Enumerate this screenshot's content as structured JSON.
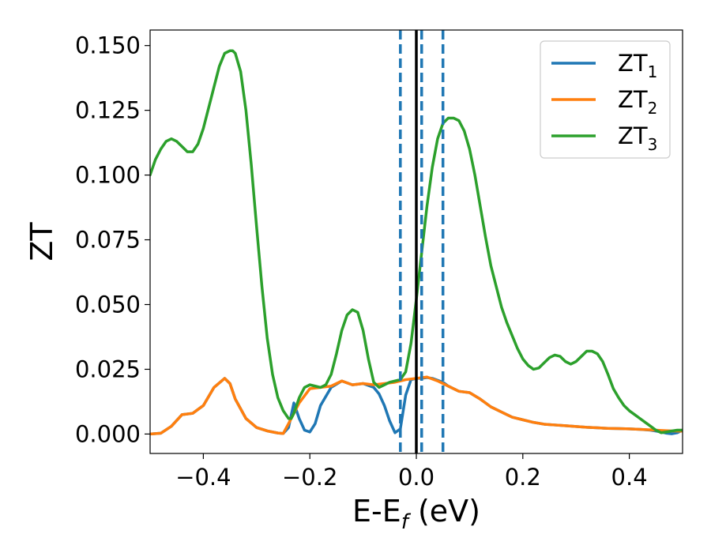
{
  "chart_data": {
    "type": "line",
    "xlabel": "E-E",
    "xlabel_subscript": "f",
    "xlabel_unit": "(eV)",
    "ylabel": "ZT",
    "xlim": [
      -0.5,
      0.5
    ],
    "ylim": [
      -0.0075,
      0.156
    ],
    "xticks": [
      -0.4,
      -0.2,
      0.0,
      0.2,
      0.4
    ],
    "xtick_labels": [
      "−0.4",
      "−0.2",
      "0.0",
      "0.2",
      "0.4"
    ],
    "yticks": [
      0.0,
      0.025,
      0.05,
      0.075,
      0.1,
      0.125,
      0.15
    ],
    "ytick_labels": [
      "0.000",
      "0.025",
      "0.050",
      "0.075",
      "0.100",
      "0.125",
      "0.150"
    ],
    "grid": false,
    "legend_position": "top-right",
    "vertical_lines": [
      {
        "x": 0.0,
        "style": "solid",
        "color": "#000000"
      },
      {
        "x": -0.03,
        "style": "dashed",
        "color": "#1f77b4"
      },
      {
        "x": 0.01,
        "style": "dashed",
        "color": "#1f77b4"
      },
      {
        "x": 0.05,
        "style": "dashed",
        "color": "#1f77b4"
      }
    ],
    "series": [
      {
        "name": "ZT",
        "subscript": "1",
        "color": "#1f77b4",
        "x": [
          -0.5,
          -0.48,
          -0.46,
          -0.44,
          -0.42,
          -0.4,
          -0.38,
          -0.36,
          -0.35,
          -0.34,
          -0.32,
          -0.3,
          -0.28,
          -0.26,
          -0.25,
          -0.24,
          -0.23,
          -0.22,
          -0.21,
          -0.2,
          -0.19,
          -0.18,
          -0.16,
          -0.14,
          -0.12,
          -0.1,
          -0.08,
          -0.07,
          -0.06,
          -0.05,
          -0.04,
          -0.03,
          -0.02,
          -0.01,
          0.0,
          0.01,
          0.02,
          0.03,
          0.05,
          0.06,
          0.08,
          0.1,
          0.12,
          0.14,
          0.16,
          0.18,
          0.2,
          0.22,
          0.24,
          0.26,
          0.28,
          0.3,
          0.32,
          0.34,
          0.36,
          0.38,
          0.4,
          0.42,
          0.44,
          0.46,
          0.47,
          0.48,
          0.49,
          0.5
        ],
        "y": [
          0.0,
          0.0003,
          0.003,
          0.0075,
          0.008,
          0.011,
          0.018,
          0.0215,
          0.0195,
          0.0135,
          0.006,
          0.0025,
          0.0012,
          0.0004,
          0.0002,
          0.0025,
          0.012,
          0.006,
          0.0015,
          0.0008,
          0.004,
          0.011,
          0.018,
          0.0205,
          0.019,
          0.0195,
          0.018,
          0.0155,
          0.011,
          0.005,
          0.0005,
          0.002,
          0.015,
          0.021,
          0.0215,
          0.0215,
          0.0218,
          0.0215,
          0.02,
          0.0185,
          0.0165,
          0.016,
          0.0135,
          0.0105,
          0.0085,
          0.0065,
          0.0055,
          0.0045,
          0.0038,
          0.0035,
          0.0032,
          0.0029,
          0.0026,
          0.0024,
          0.0022,
          0.0021,
          0.002,
          0.0018,
          0.0015,
          0.0008,
          0.0003,
          0.0001,
          0.0005,
          0.0015
        ]
      },
      {
        "name": "ZT",
        "subscript": "2",
        "color": "#ff7f0e",
        "x": [
          -0.5,
          -0.48,
          -0.46,
          -0.44,
          -0.42,
          -0.4,
          -0.38,
          -0.36,
          -0.35,
          -0.34,
          -0.32,
          -0.3,
          -0.28,
          -0.26,
          -0.25,
          -0.24,
          -0.22,
          -0.2,
          -0.18,
          -0.16,
          -0.14,
          -0.12,
          -0.1,
          -0.08,
          -0.06,
          -0.04,
          -0.02,
          0.0,
          0.02,
          0.04,
          0.06,
          0.08,
          0.1,
          0.12,
          0.14,
          0.16,
          0.18,
          0.2,
          0.22,
          0.24,
          0.26,
          0.28,
          0.3,
          0.32,
          0.34,
          0.36,
          0.38,
          0.4,
          0.42,
          0.44,
          0.46,
          0.48,
          0.5
        ],
        "y": [
          0.0,
          0.0003,
          0.003,
          0.0075,
          0.008,
          0.011,
          0.018,
          0.0215,
          0.0195,
          0.0135,
          0.006,
          0.0025,
          0.0012,
          0.0004,
          0.0002,
          0.004,
          0.012,
          0.0175,
          0.018,
          0.0185,
          0.0205,
          0.019,
          0.0195,
          0.019,
          0.0195,
          0.02,
          0.021,
          0.0215,
          0.022,
          0.0205,
          0.0185,
          0.0165,
          0.016,
          0.0135,
          0.0105,
          0.0085,
          0.0065,
          0.0055,
          0.0045,
          0.0038,
          0.0035,
          0.0032,
          0.0029,
          0.0026,
          0.0024,
          0.0022,
          0.0021,
          0.002,
          0.0018,
          0.0016,
          0.0014,
          0.0012,
          0.0011
        ]
      },
      {
        "name": "ZT",
        "subscript": "3",
        "color": "#2ca02c",
        "x": [
          -0.5,
          -0.49,
          -0.48,
          -0.47,
          -0.46,
          -0.45,
          -0.44,
          -0.43,
          -0.42,
          -0.41,
          -0.4,
          -0.39,
          -0.38,
          -0.37,
          -0.36,
          -0.35,
          -0.345,
          -0.34,
          -0.33,
          -0.32,
          -0.31,
          -0.3,
          -0.29,
          -0.28,
          -0.27,
          -0.26,
          -0.25,
          -0.24,
          -0.235,
          -0.23,
          -0.22,
          -0.21,
          -0.2,
          -0.19,
          -0.18,
          -0.17,
          -0.16,
          -0.15,
          -0.14,
          -0.13,
          -0.12,
          -0.11,
          -0.1,
          -0.09,
          -0.08,
          -0.07,
          -0.06,
          -0.05,
          -0.04,
          -0.03,
          -0.02,
          -0.01,
          0.0,
          0.01,
          0.02,
          0.03,
          0.04,
          0.05,
          0.06,
          0.07,
          0.08,
          0.09,
          0.1,
          0.11,
          0.12,
          0.13,
          0.14,
          0.15,
          0.16,
          0.17,
          0.18,
          0.19,
          0.2,
          0.21,
          0.22,
          0.23,
          0.24,
          0.25,
          0.26,
          0.27,
          0.28,
          0.29,
          0.3,
          0.31,
          0.32,
          0.33,
          0.34,
          0.35,
          0.36,
          0.37,
          0.38,
          0.39,
          0.4,
          0.41,
          0.42,
          0.43,
          0.44,
          0.45,
          0.46,
          0.47,
          0.48,
          0.49,
          0.5
        ],
        "y": [
          0.1,
          0.106,
          0.11,
          0.113,
          0.114,
          0.113,
          0.111,
          0.109,
          0.109,
          0.112,
          0.118,
          0.126,
          0.134,
          0.142,
          0.147,
          0.148,
          0.148,
          0.147,
          0.14,
          0.125,
          0.104,
          0.08,
          0.057,
          0.037,
          0.023,
          0.014,
          0.009,
          0.006,
          0.006,
          0.008,
          0.014,
          0.018,
          0.019,
          0.0185,
          0.018,
          0.019,
          0.023,
          0.031,
          0.04,
          0.046,
          0.048,
          0.047,
          0.04,
          0.029,
          0.02,
          0.018,
          0.019,
          0.02,
          0.0205,
          0.021,
          0.024,
          0.035,
          0.052,
          0.07,
          0.088,
          0.103,
          0.114,
          0.12,
          0.122,
          0.122,
          0.121,
          0.117,
          0.11,
          0.1,
          0.088,
          0.076,
          0.065,
          0.057,
          0.049,
          0.043,
          0.038,
          0.033,
          0.029,
          0.0265,
          0.025,
          0.0255,
          0.0275,
          0.0295,
          0.0305,
          0.03,
          0.028,
          0.027,
          0.028,
          0.03,
          0.032,
          0.032,
          0.031,
          0.028,
          0.023,
          0.0175,
          0.014,
          0.011,
          0.009,
          0.0075,
          0.006,
          0.0045,
          0.003,
          0.0015,
          0.0005,
          0.0008,
          0.0012,
          0.0015,
          0.0015
        ]
      }
    ]
  }
}
